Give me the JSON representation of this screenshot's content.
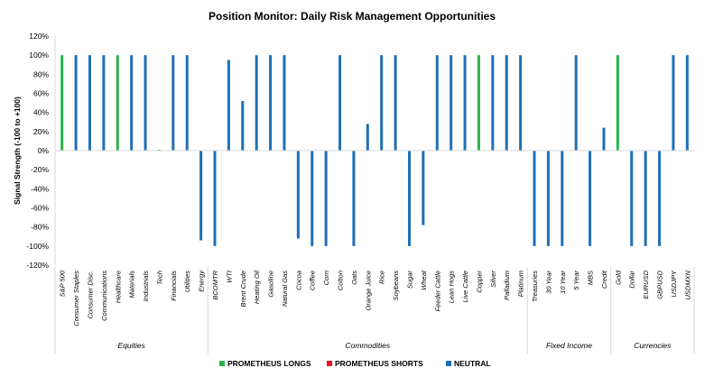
{
  "chart_data": {
    "type": "bar",
    "title": "Position Monitor: Daily Risk Management Opportunities",
    "ylabel": "Signal Strength (-100 to +100)",
    "ylim": [
      -120,
      120
    ],
    "ytick_step": 20,
    "ytick_suffix": "%",
    "grid": false,
    "legend_position": "bottom",
    "series": [
      {
        "name": "PROMETHEUS LONGS",
        "color": "#2ab24a"
      },
      {
        "name": "PROMETHEUS SHORTS",
        "color": "#e8141c"
      },
      {
        "name": "NEUTRAL",
        "color": "#1f6fb5"
      }
    ],
    "categories": [
      "S&P 500",
      "Consumer Staples",
      "Consumer Disc.",
      "Communications",
      "Healthcare",
      "Materials",
      "Industrials",
      "Tech",
      "Financials",
      "Utilities",
      "Energy",
      "BCOMTR",
      "WTI",
      "Brent Crude",
      "Heating Oil",
      "Gasoline",
      "Natural Gas",
      "Cocoa",
      "Coffee",
      "Corn",
      "Cotton",
      "Oats",
      "Orange Juice",
      "Rice",
      "Soybeans",
      "Sugar",
      "Wheat",
      "Feeder Cattle",
      "Lean Hogs",
      "Live Cattle",
      "Copper",
      "Silver",
      "Palladium",
      "Platinum",
      "Treasuries",
      "30 Year",
      "10 Year",
      "5 Year",
      "MBS",
      "Credit",
      "Gold",
      "Dollar",
      "EURUSD",
      "GBPUSD",
      "USDJPY",
      "USDMXN"
    ],
    "values": [
      100,
      100,
      100,
      100,
      100,
      100,
      100,
      1,
      100,
      100,
      -94,
      -100,
      95,
      52,
      100,
      100,
      100,
      -92,
      -100,
      -100,
      100,
      -100,
      28,
      100,
      100,
      -100,
      -78,
      100,
      100,
      100,
      100,
      100,
      100,
      100,
      -100,
      -100,
      -100,
      100,
      -100,
      24,
      100,
      -100,
      -100,
      -100,
      100,
      100
    ],
    "signal": [
      "PROMETHEUS LONGS",
      "NEUTRAL",
      "NEUTRAL",
      "NEUTRAL",
      "PROMETHEUS LONGS",
      "NEUTRAL",
      "NEUTRAL",
      "PROMETHEUS LONGS",
      "NEUTRAL",
      "NEUTRAL",
      "NEUTRAL",
      "NEUTRAL",
      "NEUTRAL",
      "NEUTRAL",
      "NEUTRAL",
      "NEUTRAL",
      "NEUTRAL",
      "NEUTRAL",
      "NEUTRAL",
      "NEUTRAL",
      "NEUTRAL",
      "NEUTRAL",
      "NEUTRAL",
      "NEUTRAL",
      "NEUTRAL",
      "NEUTRAL",
      "NEUTRAL",
      "NEUTRAL",
      "NEUTRAL",
      "NEUTRAL",
      "PROMETHEUS LONGS",
      "NEUTRAL",
      "NEUTRAL",
      "NEUTRAL",
      "NEUTRAL",
      "NEUTRAL",
      "NEUTRAL",
      "NEUTRAL",
      "NEUTRAL",
      "NEUTRAL",
      "PROMETHEUS LONGS",
      "NEUTRAL",
      "NEUTRAL",
      "NEUTRAL",
      "NEUTRAL",
      "NEUTRAL"
    ],
    "groups": [
      {
        "label": "Equities",
        "start": 0,
        "end": 10
      },
      {
        "label": "Commodities",
        "start": 11,
        "end": 33
      },
      {
        "label": "Fixed Income",
        "start": 34,
        "end": 39
      },
      {
        "label": "Currencies",
        "start": 40,
        "end": 45
      }
    ]
  }
}
